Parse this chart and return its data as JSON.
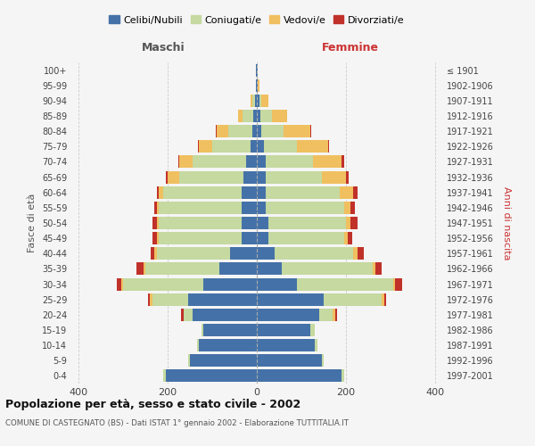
{
  "age_groups": [
    "0-4",
    "5-9",
    "10-14",
    "15-19",
    "20-24",
    "25-29",
    "30-34",
    "35-39",
    "40-44",
    "45-49",
    "50-54",
    "55-59",
    "60-64",
    "65-69",
    "70-74",
    "75-79",
    "80-84",
    "85-89",
    "90-94",
    "95-99",
    "100+"
  ],
  "birth_years": [
    "1997-2001",
    "1992-1996",
    "1987-1991",
    "1982-1986",
    "1977-1981",
    "1972-1976",
    "1967-1971",
    "1962-1966",
    "1957-1961",
    "1952-1956",
    "1947-1951",
    "1942-1946",
    "1937-1941",
    "1932-1936",
    "1927-1931",
    "1922-1926",
    "1917-1921",
    "1912-1916",
    "1907-1911",
    "1902-1906",
    "≤ 1901"
  ],
  "male": {
    "celibi": [
      205,
      150,
      130,
      120,
      145,
      155,
      120,
      85,
      60,
      35,
      35,
      35,
      35,
      30,
      25,
      15,
      10,
      8,
      5,
      2,
      2
    ],
    "coniugati": [
      5,
      5,
      5,
      5,
      20,
      80,
      180,
      165,
      165,
      185,
      185,
      185,
      175,
      145,
      120,
      85,
      55,
      25,
      5,
      0,
      0
    ],
    "vedovi": [
      0,
      0,
      0,
      0,
      0,
      5,
      5,
      5,
      5,
      5,
      5,
      5,
      10,
      25,
      30,
      30,
      25,
      10,
      5,
      0,
      0
    ],
    "divorziati": [
      0,
      0,
      0,
      0,
      5,
      5,
      10,
      15,
      8,
      10,
      10,
      5,
      5,
      5,
      2,
      2,
      2,
      0,
      0,
      0,
      0
    ]
  },
  "female": {
    "nubili": [
      190,
      145,
      130,
      120,
      140,
      150,
      90,
      55,
      40,
      25,
      25,
      20,
      20,
      20,
      20,
      15,
      10,
      8,
      5,
      2,
      2
    ],
    "coniugate": [
      5,
      5,
      5,
      10,
      30,
      130,
      215,
      205,
      175,
      170,
      175,
      175,
      165,
      125,
      105,
      75,
      50,
      25,
      5,
      0,
      0
    ],
    "vedove": [
      0,
      0,
      0,
      0,
      5,
      5,
      5,
      5,
      10,
      8,
      10,
      15,
      30,
      55,
      65,
      70,
      60,
      35,
      15,
      3,
      0
    ],
    "divorziate": [
      0,
      0,
      0,
      0,
      5,
      5,
      15,
      15,
      15,
      10,
      15,
      10,
      10,
      5,
      5,
      2,
      2,
      0,
      0,
      0,
      0
    ]
  },
  "colors": {
    "celibi": "#4472a8",
    "coniugati": "#c5d9a0",
    "vedovi": "#f0bf5f",
    "divorziati": "#c0312a"
  },
  "title": "Popolazione per età, sesso e stato civile - 2002",
  "subtitle": "COMUNE DI CASTEGNATO (BS) - Dati ISTAT 1° gennaio 2002 - Elaborazione TUTTITALIA.IT",
  "xlabel_left": "Maschi",
  "xlabel_right": "Femmine",
  "ylabel_left": "Fasce di età",
  "ylabel_right": "Anni di nascita",
  "xlim": 420,
  "background_color": "#f5f5f5",
  "grid_color": "#cccccc",
  "legend_labels": [
    "Celibi/Nubili",
    "Coniugati/e",
    "Vedovi/e",
    "Divorziati/e"
  ]
}
